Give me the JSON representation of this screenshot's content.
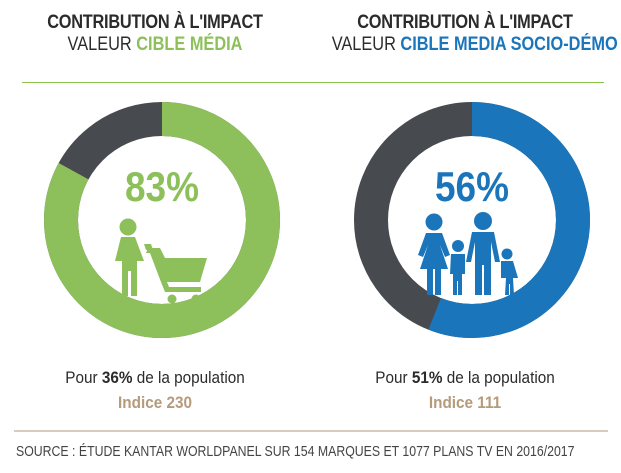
{
  "chart_data": [
    {
      "type": "pie",
      "title": "CONTRIBUTION À L'IMPACT",
      "subtitle_prefix": "VALEUR ",
      "subtitle_highlight": "CIBLE MÉDIA",
      "value": 83,
      "value_label": "83%",
      "colors": {
        "value": "#8dc05a",
        "rest": "#474b4f"
      },
      "population_prefix": "Pour ",
      "population_value": "36%",
      "population_suffix": " de la population",
      "indice": "Indice 230",
      "icon": "woman-with-shopping-cart-icon"
    },
    {
      "type": "pie",
      "title": "CONTRIBUTION À L'IMPACT",
      "subtitle_prefix": "VALEUR ",
      "subtitle_highlight": "CIBLE MEDIA SOCIO-DÉMO",
      "value": 56,
      "value_label": "56%",
      "colors": {
        "value": "#1b75bb",
        "rest": "#474b4f"
      },
      "population_prefix": "Pour ",
      "population_value": "51%",
      "population_suffix": " de la population",
      "indice": "Indice 111",
      "icon": "family-icon"
    }
  ],
  "source": "SOURCE : ÉTUDE KANTAR WORLDPANEL SUR 154 MARQUES ET 1077 PLANS TV EN 2016/2017",
  "divider_color": "#8bc34a"
}
